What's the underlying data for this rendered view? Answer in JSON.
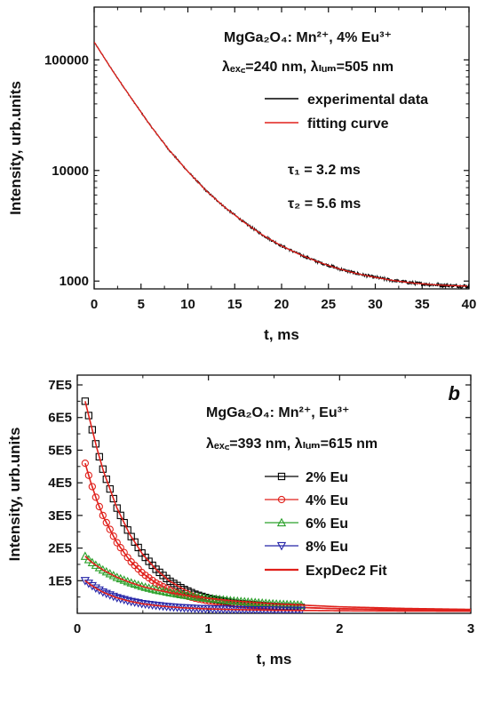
{
  "chart_data": [
    {
      "type": "line",
      "panel_label": "",
      "xlabel": "t, ms",
      "ylabel": "Intensity, urb.units",
      "xlim": [
        0,
        40
      ],
      "ylim": [
        850,
        300000
      ],
      "yscale": "log",
      "xticks": [
        0,
        5,
        10,
        15,
        20,
        25,
        30,
        35,
        40
      ],
      "yticks": [
        {
          "value": 1000,
          "label": "1000"
        },
        {
          "value": 10000,
          "label": "10000"
        },
        {
          "value": 100000,
          "label": "100000"
        }
      ],
      "annotations": [
        {
          "id": "composition",
          "text": "MgGa₂O₄: Mn²⁺, 4% Eu³⁺"
        },
        {
          "id": "wavelengths",
          "text": "λₑₓ꜀=240 nm, λₗᵤₘ=505 nm"
        },
        {
          "id": "tau1",
          "text": "τ₁ = 3.2 ms"
        },
        {
          "id": "tau2",
          "text": "τ₂ = 5.6 ms"
        }
      ],
      "legend_position": "top-right",
      "series": [
        {
          "name": "experimental data",
          "color": "#000000",
          "style": "noisy-line",
          "x": [
            0,
            2,
            4,
            6,
            8,
            10,
            12,
            14,
            16,
            18,
            20,
            22,
            24,
            26,
            28,
            30,
            32,
            34,
            36,
            38,
            40
          ],
          "y": [
            145000,
            79000,
            44500,
            25500,
            15300,
            9800,
            6500,
            4600,
            3400,
            2600,
            2080,
            1730,
            1480,
            1300,
            1170,
            1080,
            1010,
            960,
            930,
            910,
            900
          ]
        },
        {
          "name": "fitting curve",
          "color": "#e0201b",
          "style": "line",
          "x": [
            0,
            2,
            4,
            6,
            8,
            10,
            12,
            14,
            16,
            18,
            20,
            22,
            24,
            26,
            28,
            30,
            32,
            34,
            36,
            38,
            40
          ],
          "y": [
            145000,
            79000,
            44500,
            25500,
            15300,
            9800,
            6500,
            4600,
            3400,
            2600,
            2080,
            1730,
            1480,
            1300,
            1170,
            1080,
            1010,
            960,
            930,
            910,
            900
          ]
        }
      ]
    },
    {
      "type": "line",
      "panel_label": "b",
      "xlabel": "t, ms",
      "ylabel": "Intensity, urb.units",
      "xlim": [
        0,
        3
      ],
      "ylim": [
        0,
        730000
      ],
      "yscale": "linear",
      "xticks": [
        0,
        1,
        2,
        3
      ],
      "yticks": [
        {
          "value": 100000,
          "label": "1E5"
        },
        {
          "value": 200000,
          "label": "2E5"
        },
        {
          "value": 300000,
          "label": "3E5"
        },
        {
          "value": 400000,
          "label": "4E5"
        },
        {
          "value": 500000,
          "label": "5E5"
        },
        {
          "value": 600000,
          "label": "6E5"
        },
        {
          "value": 700000,
          "label": "7E5"
        }
      ],
      "annotations": [
        {
          "id": "composition",
          "text": "MgGa₂O₄: Mn²⁺, Eu³⁺"
        },
        {
          "id": "wavelengths",
          "text": "λₑₓ꜀=393 nm, λₗᵤₘ=615 nm"
        }
      ],
      "legend_position": "top-right",
      "series": [
        {
          "name": "2% Eu",
          "color": "#000000",
          "marker": "square",
          "x": [
            0.06,
            0.1,
            0.15,
            0.2,
            0.3,
            0.4,
            0.5,
            0.6,
            0.7,
            0.8,
            0.9,
            1.0,
            1.2,
            1.5,
            2.0,
            2.5,
            3.0
          ],
          "y": [
            650000,
            585000,
            505000,
            435000,
            325000,
            242000,
            180000,
            135000,
            100000,
            76000,
            58000,
            46000,
            31000,
            21000,
            14000,
            11500,
            10000
          ]
        },
        {
          "name": "4% Eu",
          "color": "#e0201b",
          "marker": "circle",
          "x": [
            0.06,
            0.1,
            0.15,
            0.2,
            0.3,
            0.4,
            0.5,
            0.6,
            0.7,
            0.8,
            0.9,
            1.0,
            1.2,
            1.5,
            2.0,
            2.5,
            3.0
          ],
          "y": [
            460000,
            405000,
            345000,
            295000,
            218000,
            162000,
            122000,
            93000,
            72000,
            57000,
            46000,
            38000,
            28000,
            20000,
            14000,
            11000,
            10000
          ]
        },
        {
          "name": "6% Eu",
          "color": "#2aa02a",
          "marker": "triangle-up",
          "x": [
            0.06,
            0.1,
            0.15,
            0.2,
            0.3,
            0.4,
            0.5,
            0.6,
            0.7,
            0.8,
            0.9,
            1.0,
            1.2,
            1.5,
            2.0,
            2.5,
            3.0
          ],
          "y": [
            175000,
            160000,
            145000,
            132000,
            111000,
            95000,
            82000,
            72000,
            64000,
            57000,
            51000,
            46000,
            38000,
            29000,
            20000,
            15000,
            12000
          ]
        },
        {
          "name": "8% Eu",
          "color": "#2424a8",
          "marker": "triangle-down",
          "x": [
            0.06,
            0.1,
            0.15,
            0.2,
            0.3,
            0.4,
            0.5,
            0.6,
            0.7,
            0.8,
            0.9,
            1.0,
            1.2,
            1.5,
            2.0,
            2.5,
            3.0
          ],
          "y": [
            100000,
            88000,
            75000,
            64000,
            48000,
            37000,
            29000,
            24000,
            20000,
            17000,
            15000,
            13500,
            11500,
            9500,
            8000,
            7000,
            6500
          ]
        },
        {
          "name": "ExpDec2 Fit",
          "color": "#e0201b",
          "style": "fit-line"
        }
      ]
    }
  ]
}
